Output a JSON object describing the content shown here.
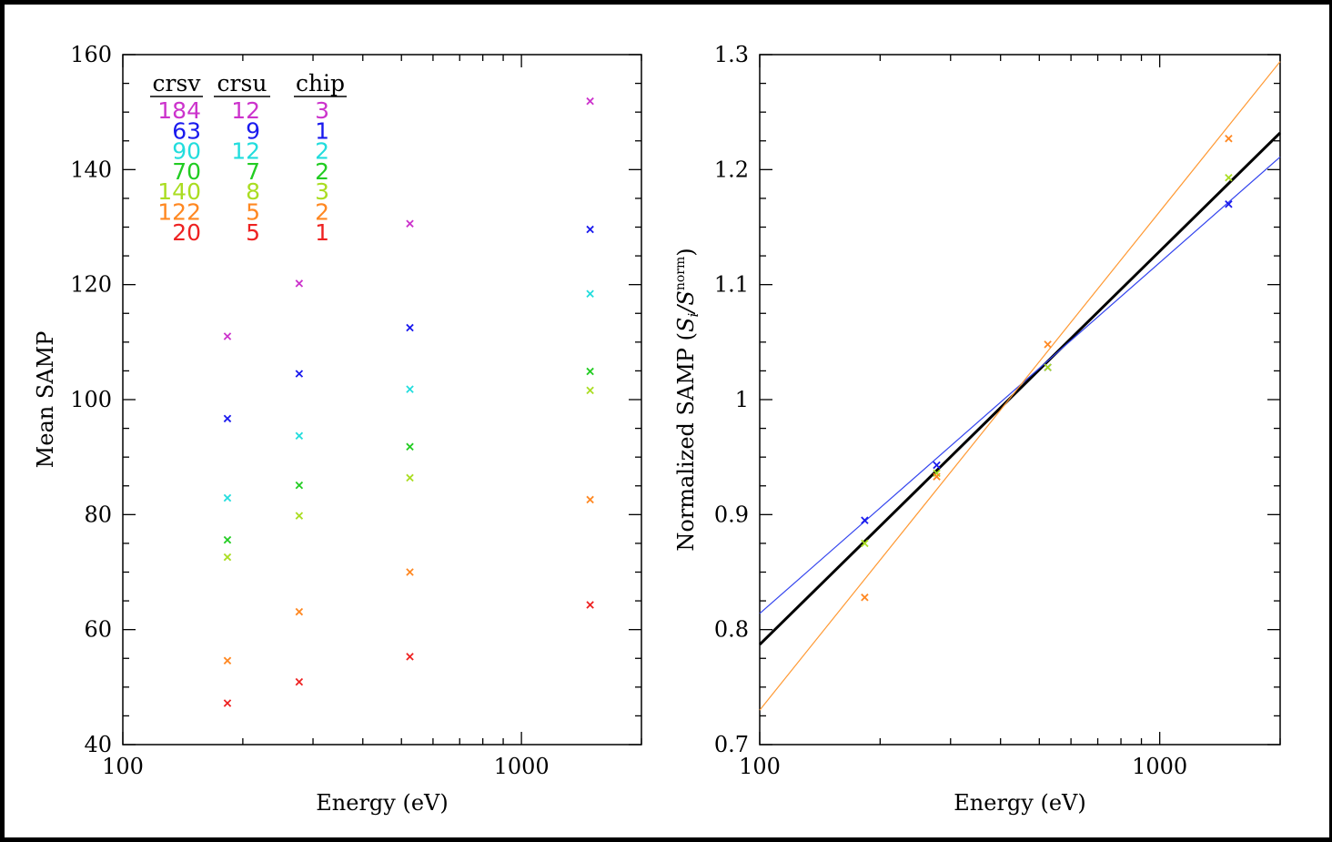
{
  "chart_data": [
    {
      "type": "scatter",
      "xscale": "log",
      "xlim": [
        100,
        2000
      ],
      "ylim": [
        40,
        160
      ],
      "xlabel": "Energy (eV)",
      "ylabel": "Mean SAMP",
      "xticks": [
        "100",
        "1000"
      ],
      "yticks": [
        "40",
        "60",
        "80",
        "100",
        "120",
        "140",
        "160"
      ],
      "legend": {
        "placement": "top-left",
        "headers": [
          "crsv",
          "crsu",
          "chip"
        ],
        "rows": [
          {
            "crsv": "184",
            "crsu": "12",
            "chip": "3",
            "color": "#cc33cc"
          },
          {
            "crsv": "63",
            "crsu": "9",
            "chip": "1",
            "color": "#1a1aee"
          },
          {
            "crsv": "90",
            "crsu": "12",
            "chip": "2",
            "color": "#22dddd"
          },
          {
            "crsv": "70",
            "crsu": "7",
            "chip": "2",
            "color": "#22cc22"
          },
          {
            "crsv": "140",
            "crsu": "8",
            "chip": "3",
            "color": "#aadd22"
          },
          {
            "crsv": "122",
            "crsu": "5",
            "chip": "2",
            "color": "#ff8822"
          },
          {
            "crsv": "20",
            "crsu": "5",
            "chip": "1",
            "color": "#ee2222"
          }
        ]
      },
      "x": [
        183,
        277,
        525,
        1487
      ],
      "series": [
        {
          "color": "#cc33cc",
          "values": [
            111,
            120.2,
            130.6,
            151.9
          ]
        },
        {
          "color": "#1a1aee",
          "values": [
            96.7,
            104.5,
            112.5,
            129.6
          ]
        },
        {
          "color": "#22dddd",
          "values": [
            82.9,
            93.7,
            101.8,
            118.4
          ]
        },
        {
          "color": "#22cc22",
          "values": [
            75.6,
            85.1,
            91.8,
            104.9
          ]
        },
        {
          "color": "#aadd22",
          "values": [
            72.6,
            79.8,
            86.4,
            101.6
          ]
        },
        {
          "color": "#ff8822",
          "values": [
            54.6,
            63.1,
            70.0,
            82.6
          ]
        },
        {
          "color": "#ee2222",
          "values": [
            47.2,
            50.9,
            55.3,
            64.3
          ]
        }
      ]
    },
    {
      "type": "scatter",
      "xscale": "log",
      "xlim": [
        100,
        2000
      ],
      "ylim": [
        0.7,
        1.3
      ],
      "xlabel": "Energy (eV)",
      "ylabel": "Normalized SAMP (S_i/S_i^norm)",
      "ylabel_main": "Normalized SAMP (",
      "ylabel_S": "S",
      "ylabel_sub": "i",
      "ylabel_slash": "/S",
      "ylabel_sup": "norm",
      "ylabel_close": ")",
      "xticks": [
        "100",
        "1000"
      ],
      "yticks": [
        "0.7",
        "0.8",
        "0.9",
        "1",
        "1.1",
        "1.2",
        "1.3"
      ],
      "x": [
        183,
        277,
        525,
        1487
      ],
      "series": [
        {
          "color": "#1a1aee",
          "values": [
            0.895,
            0.943,
            1.028,
            1.17
          ]
        },
        {
          "color": "#aadd22",
          "values": [
            0.875,
            0.936,
            1.028,
            1.193
          ]
        },
        {
          "color": "#ff8822",
          "values": [
            0.828,
            0.933,
            1.048,
            1.227
          ]
        }
      ],
      "fits": [
        {
          "color": "#000000",
          "width": 3,
          "y_at_xmin": 0.787,
          "y_at_xmax": 1.232
        },
        {
          "color": "#3344ee",
          "width": 1.2,
          "y_at_xmin": 0.814,
          "y_at_xmax": 1.211
        },
        {
          "color": "#ff9933",
          "width": 1.2,
          "y_at_xmin": 0.73,
          "y_at_xmax": 1.294
        }
      ]
    }
  ]
}
